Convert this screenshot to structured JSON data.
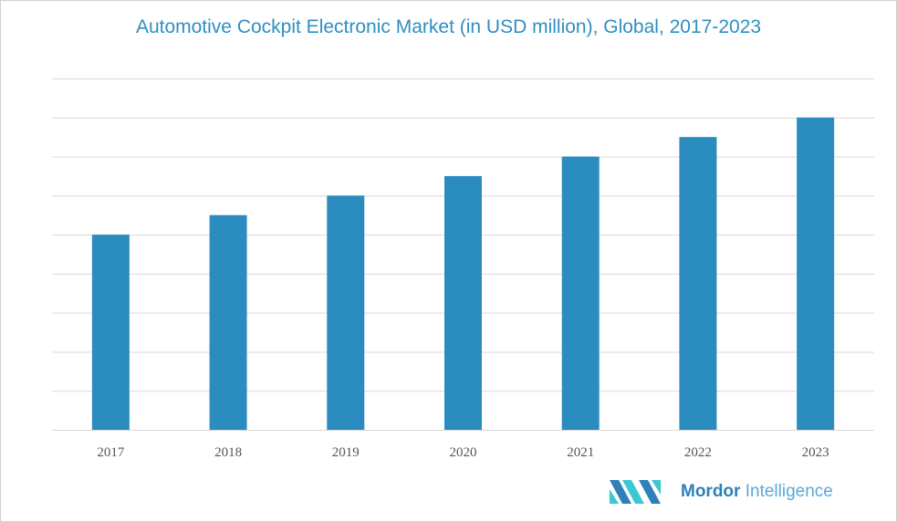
{
  "chart_data": {
    "type": "bar",
    "title": "Automotive Cockpit Electronic Market (in USD million), Global, 2017-2023",
    "categories": [
      "2017",
      "2018",
      "2019",
      "2020",
      "2021",
      "2022",
      "2023"
    ],
    "values": [
      5,
      5.5,
      6,
      6.5,
      7,
      7.5,
      8
    ],
    "xlabel": "",
    "ylabel": "",
    "ylim": [
      0,
      9
    ],
    "y_tick_labels_shown": false,
    "grid": true,
    "bar_color": "#2b8cbf",
    "grid_color": "#d9d9d9"
  },
  "logo": {
    "brand": "Mordor",
    "brand2": "Intelligence",
    "colors": [
      "#2f7fb8",
      "#3cc8d0"
    ]
  }
}
